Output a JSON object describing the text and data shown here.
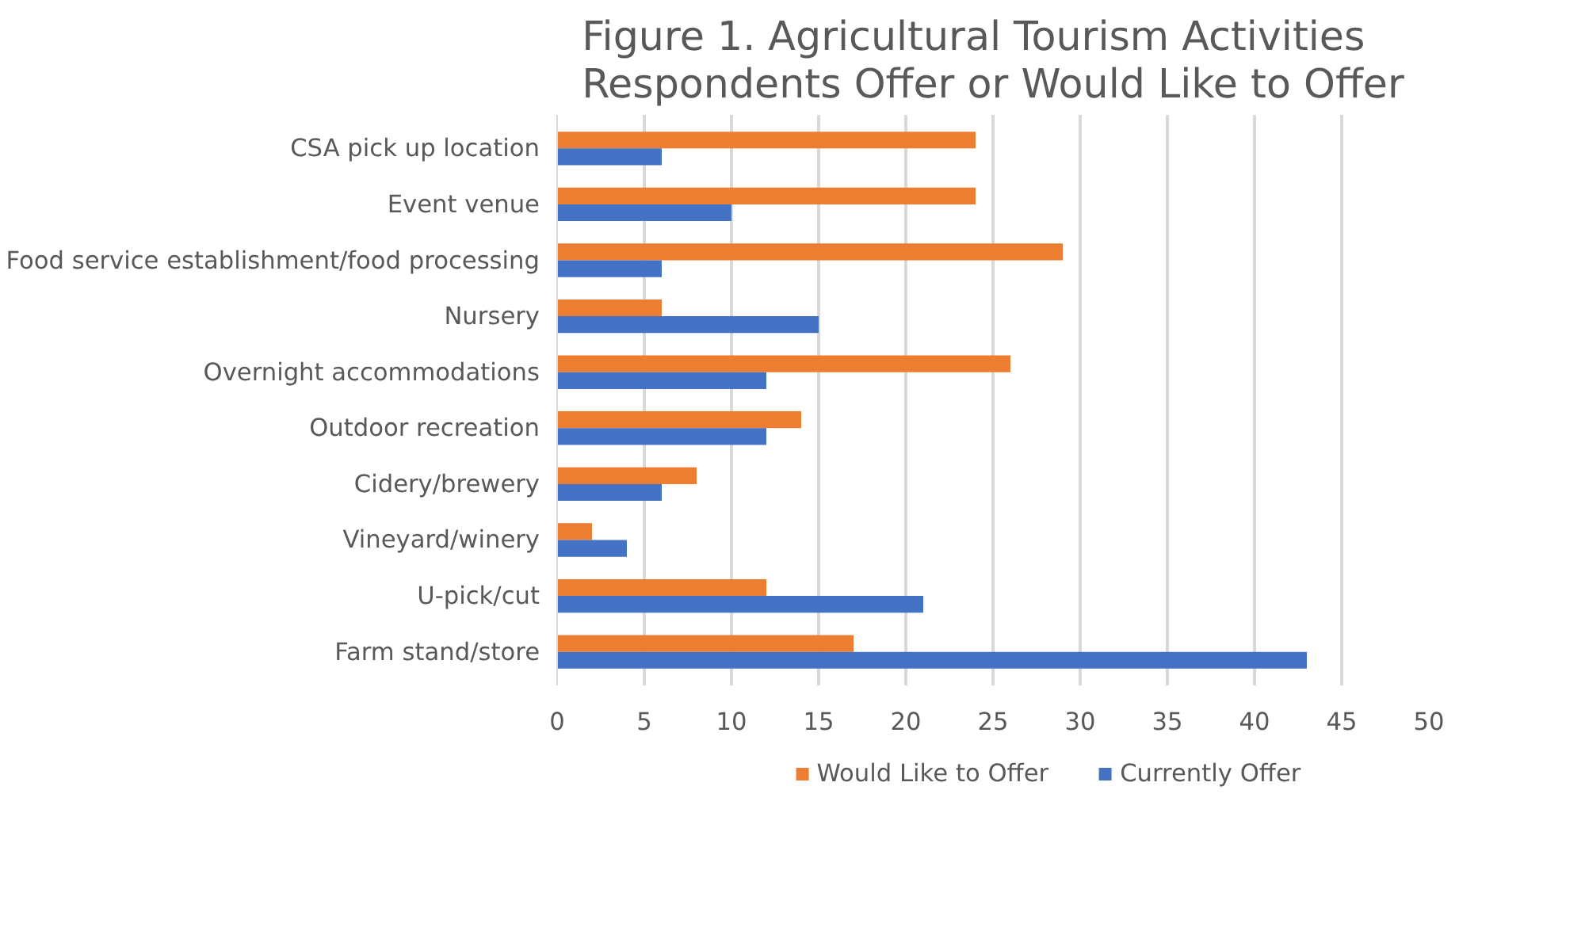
{
  "chart_data": {
    "type": "bar",
    "orientation": "horizontal",
    "title": "Figure 1. Agricultural Tourism Activities Respondents Offer or Would Like to Offer",
    "categories": [
      "CSA pick up location",
      "Event venue",
      "Food service establishment/food processing",
      "Nursery",
      "Overnight accommodations",
      "Outdoor recreation",
      "Cidery/brewery",
      "Vineyard/winery",
      "U-pick/cut",
      "Farm stand/store"
    ],
    "series": [
      {
        "name": "Would Like to Offer",
        "color": "#ed7d31",
        "values": [
          24,
          24,
          29,
          6,
          26,
          14,
          8,
          2,
          12,
          17
        ]
      },
      {
        "name": "Currently Offer",
        "color": "#4472c4",
        "values": [
          6,
          10,
          6,
          15,
          12,
          12,
          6,
          4,
          21,
          43
        ]
      }
    ],
    "xlim": [
      0,
      50
    ],
    "xticks": [
      0,
      5,
      10,
      15,
      20,
      25,
      30,
      35,
      40,
      45,
      50
    ],
    "grid": "x",
    "legend": "bottom"
  }
}
